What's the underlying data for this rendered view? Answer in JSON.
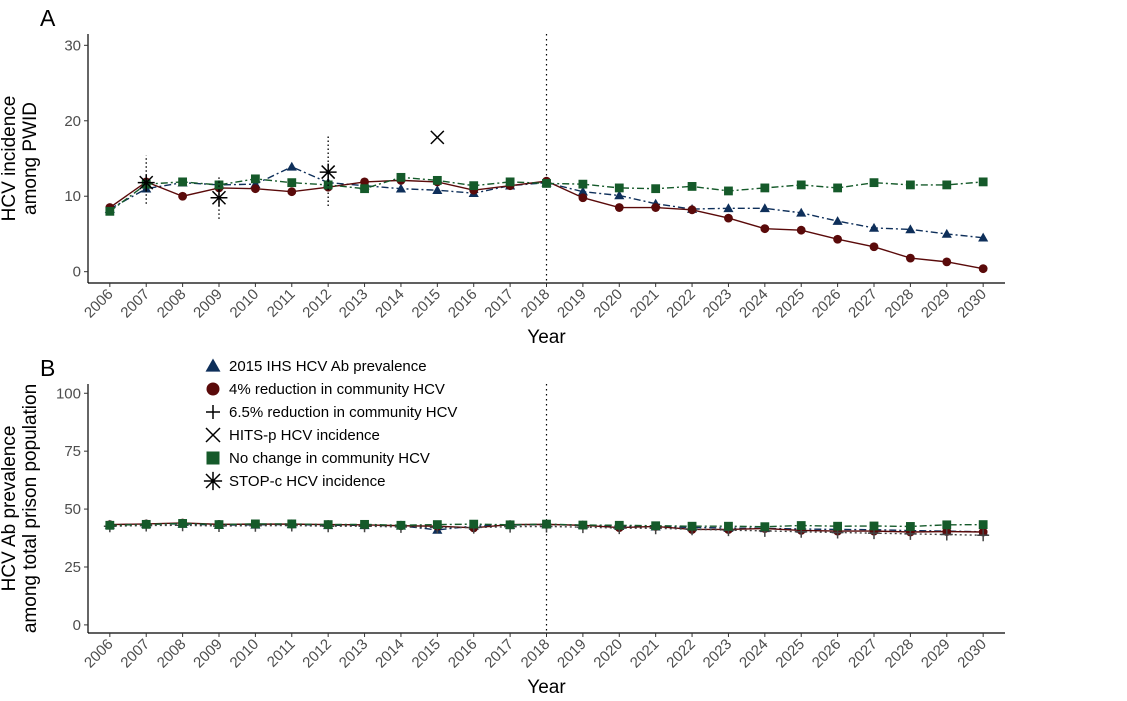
{
  "chart_data": [
    {
      "type": "line",
      "panel_label": "A",
      "xlabel": "Year",
      "ylabel": [
        "HCV incidence",
        "among PWID"
      ],
      "x": [
        2006,
        2007,
        2008,
        2009,
        2010,
        2011,
        2012,
        2013,
        2014,
        2015,
        2016,
        2017,
        2018,
        2019,
        2020,
        2021,
        2022,
        2023,
        2024,
        2025,
        2026,
        2027,
        2028,
        2029,
        2030
      ],
      "ylim": [
        -1.5,
        31.5
      ],
      "yticks": [
        0,
        10,
        20,
        30
      ],
      "vline_x": 2018,
      "series": [
        {
          "name": "2015 IHS HCV Ab prevalence",
          "color": "#0e2f5a",
          "marker": "triangle",
          "dash": "dashdot",
          "values": [
            8.3,
            11.0,
            11.8,
            11.5,
            11.6,
            13.9,
            11.8,
            11.4,
            11.0,
            10.8,
            10.4,
            11.4,
            11.8,
            10.6,
            10.1,
            9.0,
            8.3,
            8.4,
            8.4,
            7.8,
            6.7,
            5.8,
            5.6,
            5.0,
            4.5
          ]
        },
        {
          "name": "4% reduction in community HCV",
          "color": "#5a0a0a",
          "marker": "circle",
          "dash": "solid",
          "values": [
            8.5,
            11.9,
            10.0,
            11.1,
            11.0,
            10.6,
            11.2,
            11.9,
            12.1,
            11.9,
            10.8,
            11.4,
            12.0,
            9.8,
            8.5,
            8.5,
            8.2,
            7.1,
            5.7,
            5.5,
            4.3,
            3.3,
            1.8,
            1.3,
            0.4
          ]
        },
        {
          "name": "No change in community HCV",
          "color": "#155a2a",
          "marker": "square",
          "dash": "dashdot",
          "values": [
            8.0,
            11.6,
            11.9,
            11.5,
            12.3,
            11.8,
            11.5,
            11.0,
            12.5,
            12.1,
            11.4,
            11.9,
            11.7,
            11.6,
            11.1,
            11.0,
            11.3,
            10.7,
            11.1,
            11.5,
            11.1,
            11.8,
            11.5,
            11.5,
            11.9
          ]
        }
      ],
      "observed": [
        {
          "name": "STOP-c HCV incidence",
          "marker": "asterisk",
          "points": [
            {
              "x": 2007,
              "y": 11.8,
              "low": 9.0,
              "high": 15.4
            },
            {
              "x": 2009,
              "y": 9.8,
              "low": 7.0,
              "high": 12.8
            },
            {
              "x": 2012,
              "y": 13.2,
              "low": 8.7,
              "high": 18.0
            }
          ]
        },
        {
          "name": "HITS-p HCV incidence",
          "marker": "x",
          "points": [
            {
              "x": 2015,
              "y": 17.8
            }
          ]
        }
      ]
    },
    {
      "type": "line",
      "panel_label": "B",
      "xlabel": "Year",
      "ylabel": [
        "HCV Ab prevalence",
        "among total prison population"
      ],
      "x": [
        2006,
        2007,
        2008,
        2009,
        2010,
        2011,
        2012,
        2013,
        2014,
        2015,
        2016,
        2017,
        2018,
        2019,
        2020,
        2021,
        2022,
        2023,
        2024,
        2025,
        2026,
        2027,
        2028,
        2029,
        2030
      ],
      "ylim": [
        -3.5,
        104
      ],
      "yticks": [
        0,
        25,
        50,
        75,
        100
      ],
      "vline_x": 2018,
      "series": [
        {
          "name": "2015 IHS HCV Ab prevalence",
          "color": "#0e2f5a",
          "marker": "triangle",
          "dash": "dashdot",
          "values": [
            43.2,
            43.5,
            43.6,
            43.1,
            43.2,
            43.4,
            43.0,
            43.0,
            42.8,
            41.0,
            42.7,
            43.1,
            43.3,
            43.0,
            42.6,
            42.4,
            42.1,
            41.8,
            41.7,
            41.4,
            41.2,
            41.1,
            40.7,
            40.5,
            40.2
          ]
        },
        {
          "name": "4% reduction in community HCV",
          "color": "#5a0a0a",
          "marker": "circle",
          "dash": "solid",
          "values": [
            43.3,
            43.6,
            44.0,
            43.4,
            43.5,
            43.5,
            43.3,
            43.2,
            42.8,
            42.6,
            41.9,
            43.3,
            43.4,
            43.0,
            42.0,
            42.5,
            41.2,
            41.2,
            41.6,
            40.8,
            40.5,
            40.5,
            40.1,
            40.3,
            40.1
          ]
        },
        {
          "name": "6.5% reduction in community HCV",
          "color": "#444444",
          "marker": "plus",
          "dash": "dotted",
          "values": [
            42.6,
            42.9,
            43.0,
            42.7,
            42.8,
            42.9,
            42.6,
            42.6,
            42.3,
            42.1,
            42.0,
            42.4,
            42.5,
            42.2,
            41.8,
            41.7,
            41.3,
            40.9,
            40.6,
            40.2,
            39.9,
            39.6,
            39.3,
            39.0,
            38.7
          ]
        },
        {
          "name": "No change in community HCV",
          "color": "#155a2a",
          "marker": "square",
          "dash": "dashdot",
          "values": [
            43.0,
            43.4,
            43.8,
            43.3,
            43.6,
            43.6,
            43.3,
            43.4,
            43.0,
            43.3,
            43.5,
            43.2,
            43.5,
            43.1,
            43.0,
            42.8,
            42.6,
            42.6,
            42.4,
            42.9,
            42.6,
            42.7,
            42.5,
            43.2,
            43.3
          ]
        }
      ]
    }
  ],
  "legend": [
    {
      "label": "2015 IHS HCV Ab prevalence",
      "marker": "triangle",
      "color": "#0e2f5a"
    },
    {
      "label": "4% reduction in community HCV",
      "marker": "circle",
      "color": "#5a0a0a"
    },
    {
      "label": "6.5% reduction in community HCV",
      "marker": "plus",
      "color": "#000000"
    },
    {
      "label": "HITS-p HCV incidence",
      "marker": "x",
      "color": "#000000"
    },
    {
      "label": "No change in community HCV",
      "marker": "square",
      "color": "#155a2a"
    },
    {
      "label": "STOP-c HCV incidence",
      "marker": "asterisk",
      "color": "#000000"
    }
  ]
}
